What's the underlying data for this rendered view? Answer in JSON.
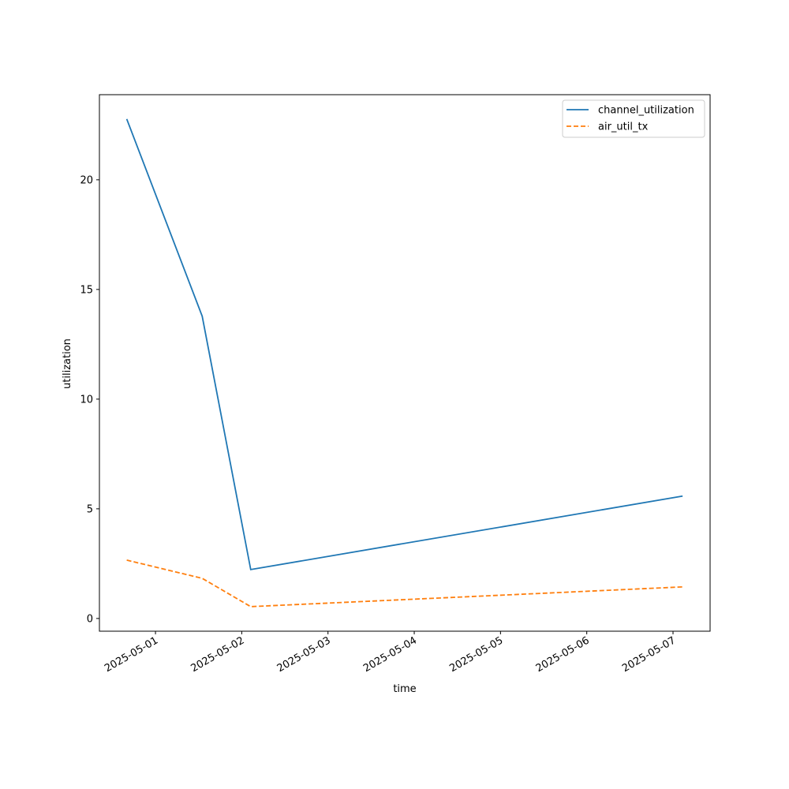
{
  "chart_data": {
    "type": "line",
    "x": [
      "2025-04-30T16:00",
      "2025-05-01T13:00",
      "2025-05-02T02:30",
      "2025-05-07T02:40"
    ],
    "series": [
      {
        "name": "channel_utilization",
        "color": "#1f77b4",
        "dash": "solid",
        "values": [
          22.77,
          13.78,
          2.23,
          5.58
        ]
      },
      {
        "name": "air_util_tx",
        "color": "#ff7f0e",
        "dash": "dashed",
        "values": [
          2.66,
          1.83,
          0.54,
          1.44
        ]
      }
    ],
    "xlabel": "time",
    "ylabel": "utilization",
    "xlim": [
      "2025-04-30T08:24",
      "2025-05-07T10:19"
    ],
    "xticks": [
      "2025-05-01",
      "2025-05-02",
      "2025-05-03",
      "2025-05-04",
      "2025-05-05",
      "2025-05-06",
      "2025-05-07"
    ],
    "ylim": [
      -0.58,
      23.88
    ],
    "yticks": [
      0,
      5,
      10,
      15,
      20
    ],
    "legend": "upper right",
    "grid": false
  }
}
